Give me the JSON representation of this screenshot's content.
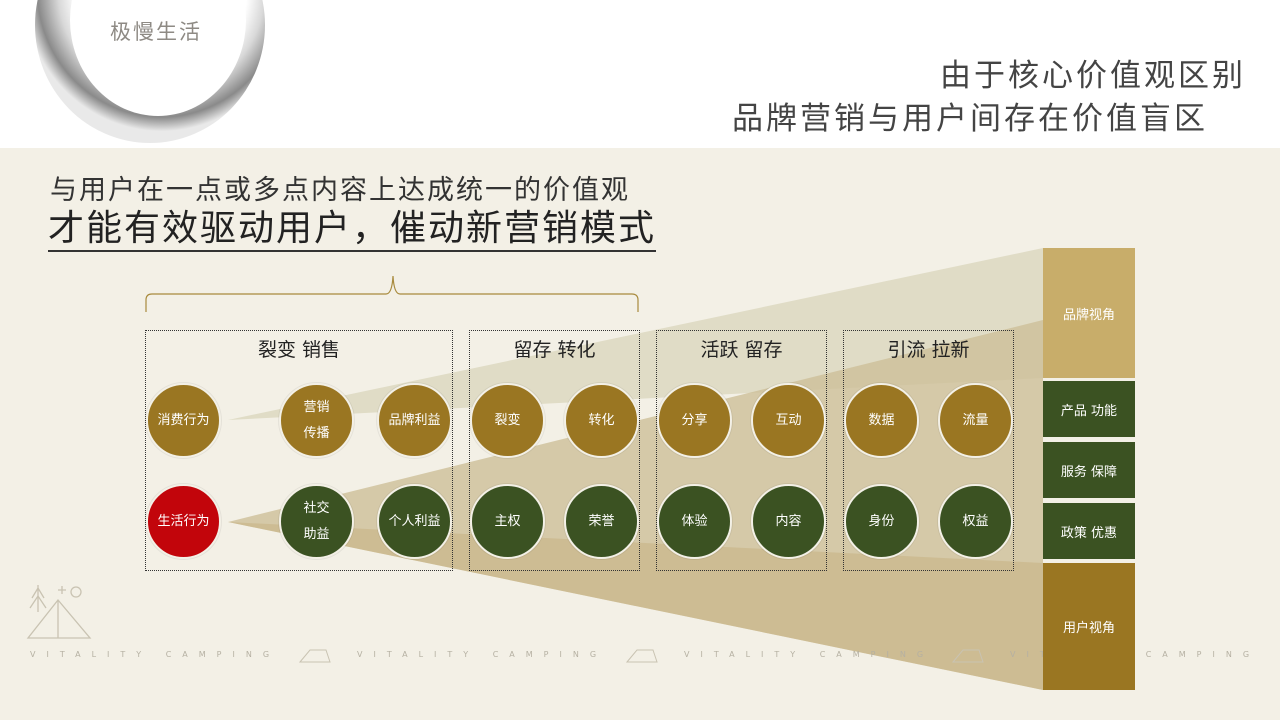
{
  "brand": {
    "logo_text": "极慢生活"
  },
  "header": {
    "line1": "由于核心价值观区别",
    "line2": "品牌营销与用户间存在价值盲区"
  },
  "intro": {
    "line1": "与用户在一点或多点内容上达成统一的价值观",
    "line2": "才能有效驱动用户，催动新营销模式"
  },
  "groups": [
    {
      "title": "裂变 销售",
      "top_items": [
        "消费行为",
        "营销\n传播",
        "品牌利益"
      ],
      "bottom_items": [
        "生活行为",
        "社交\n助益",
        "个人利益"
      ]
    },
    {
      "title": "留存 转化",
      "top_items": [
        "裂变",
        "转化"
      ],
      "bottom_items": [
        "主权",
        "荣誉"
      ]
    },
    {
      "title": "活跃 留存",
      "top_items": [
        "分享",
        "互动"
      ],
      "bottom_items": [
        "体验",
        "内容"
      ]
    },
    {
      "title": "引流 拉新",
      "top_items": [
        "数据",
        "流量"
      ],
      "bottom_items": [
        "身份",
        "权益"
      ]
    }
  ],
  "sidebar": {
    "brand_view": "品牌视角",
    "items": [
      "产品 功能",
      "服务 保障",
      "政策 优惠"
    ],
    "user_view": "用户视角"
  },
  "footer": {
    "text": "VITALITY CAMPING"
  },
  "colors": {
    "gold": "#9a7622",
    "green": "#3b5222",
    "red": "#c2050b",
    "sidebar_light": "#c8ad6a",
    "sidebar_dark": "#9a7622"
  }
}
